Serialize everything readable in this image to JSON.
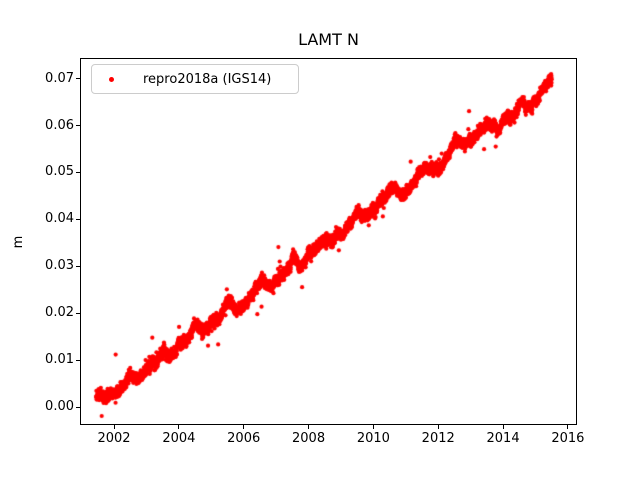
{
  "chart_data": {
    "type": "scatter",
    "title": "LAMT N",
    "xlabel": "",
    "ylabel": "m",
    "xlim": [
      2000.95,
      2016.25
    ],
    "ylim": [
      -0.0036,
      0.0744
    ],
    "xticks": [
      "2002",
      "2004",
      "2006",
      "2008",
      "2010",
      "2012",
      "2014",
      "2016"
    ],
    "yticks": [
      "0.00",
      "0.01",
      "0.02",
      "0.03",
      "0.04",
      "0.05",
      "0.06",
      "0.07"
    ],
    "grid": false,
    "legend": {
      "label": "repro2018a (IGS14)",
      "position": "upper left"
    },
    "series": [
      {
        "name": "repro2018a (IGS14)",
        "color": "#ff0000",
        "marker": "dot",
        "marker_radius_px": 2.1,
        "sampling_per_year": 365,
        "t_start": 2001.45,
        "t_end": 2015.5,
        "start_value_m": 0.0009,
        "trend_m_per_year": 0.00484,
        "annual_amplitude_m": 0.0007,
        "annual_phase_yr": 0.2,
        "semiannual_amplitude_m": 0.0004,
        "white_noise_sd_m": 0.00055,
        "wander_sd_m": 0.0007,
        "wander_persistence": 0.985,
        "outlier_fraction": 0.012,
        "outlier_extra_sd_m": 0.0022,
        "seed": 20180101,
        "extreme_outliers": [
          {
            "t": 2007.07,
            "v": 0.0341
          },
          {
            "t": 2003.18,
            "v": 0.0148
          },
          {
            "t": 2006.42,
            "v": 0.0198
          },
          {
            "t": 2006.55,
            "v": 0.0214
          },
          {
            "t": 2002.05,
            "v": 0.0112
          },
          {
            "t": 2011.15,
            "v": 0.0523
          },
          {
            "t": 2001.62,
            "v": -0.0019
          },
          {
            "t": 2004.9,
            "v": 0.0131
          }
        ]
      }
    ]
  }
}
